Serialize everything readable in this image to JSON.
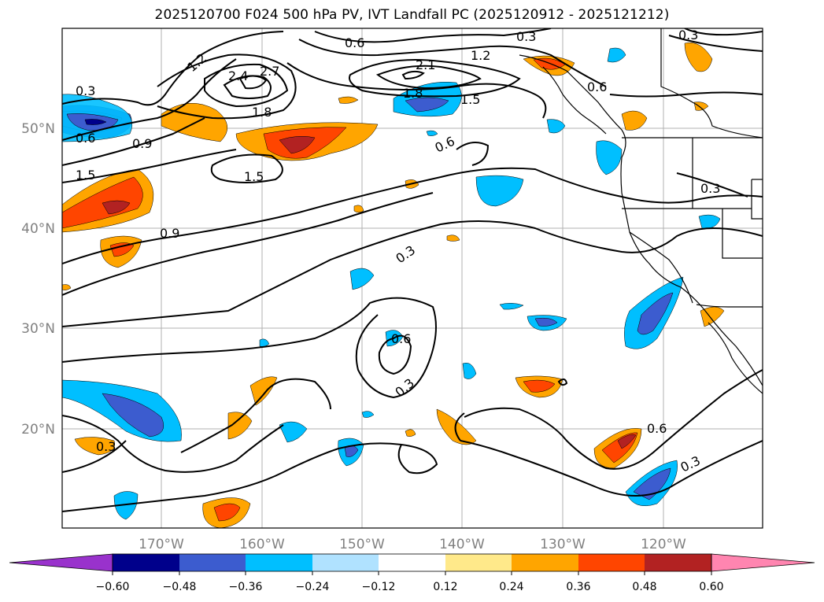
{
  "title": "2025120700 F024 500 hPa PV, IVT Landfall PC (2025120912 - 2025121212)",
  "map": {
    "lat_labels": [
      "50°N",
      "40°N",
      "30°N",
      "20°N"
    ],
    "lon_labels": [
      "170°W",
      "160°W",
      "150°W",
      "140°W",
      "130°W",
      "120°W"
    ],
    "contour_labels": [
      "0.3",
      "0.6",
      "0.9",
      "1.2",
      "1.5",
      "1.8",
      "2.1",
      "2.4",
      "2.7"
    ],
    "colors": {
      "land_outline": "#000000",
      "grid": "#b0b0b0",
      "axis_label": "#808080"
    }
  },
  "colorbar": {
    "ticks": [
      "−0.60",
      "−0.48",
      "−0.36",
      "−0.24",
      "−0.12",
      "0.12",
      "0.24",
      "0.36",
      "0.48",
      "0.60"
    ],
    "colors": [
      "#9932cc",
      "#00008b",
      "#3c5ccf",
      "#00bfff",
      "#b0e2ff",
      "#ffffff",
      "#ffe98a",
      "#ffa500",
      "#ff4500",
      "#b22222",
      "#ff85b0"
    ]
  }
}
